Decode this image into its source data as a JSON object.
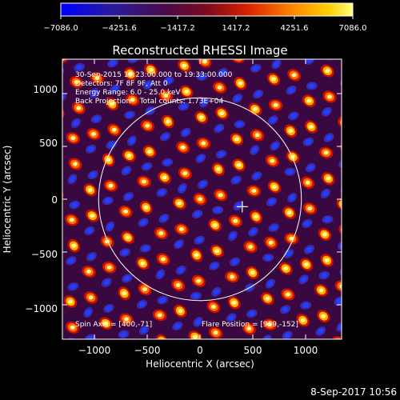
{
  "colorbar": {
    "tick_labels": [
      "−7086.0",
      "−4251.6",
      "−1417.2",
      "1417.2",
      "4251.6",
      "7086.0"
    ],
    "range": [
      -7086.0,
      7086.0
    ]
  },
  "chart_data": {
    "type": "heatmap",
    "title": "Reconstructed RHESSI Image",
    "xlabel": "Heliocentric X (arcsec)",
    "ylabel": "Heliocentric Y (arcsec)",
    "xlim": [
      -1300,
      1300
    ],
    "ylim": [
      -1300,
      1300
    ],
    "x_ticks": [
      "−1000",
      "−500",
      "0",
      "500",
      "1000"
    ],
    "y_ticks": [
      "−1000",
      "−500",
      "0",
      "500",
      "1000"
    ],
    "x_tick_values": [
      -1000,
      -500,
      0,
      500,
      1000
    ],
    "y_tick_values": [
      -1000,
      -500,
      0,
      500,
      1000
    ],
    "value_range": [
      -7086.0,
      7086.0
    ],
    "solar_limb_radius": 960,
    "cross_marker": [
      400,
      -71
    ],
    "annotations": [
      "30-Sep-2015 19:23:00.000 to 19:33:00.000",
      "Detectors: 7F 8F 9F, Att 0",
      "Energy Range: 6.0 - 25.0 keV",
      "Back Projection    Total counts: 1.73E+04"
    ],
    "spin_axis": "Spin Axis = [400,-71]",
    "flare_position": "Flare Position = [969,-152]"
  },
  "timestamp": "8-Sep-2017 10:56"
}
